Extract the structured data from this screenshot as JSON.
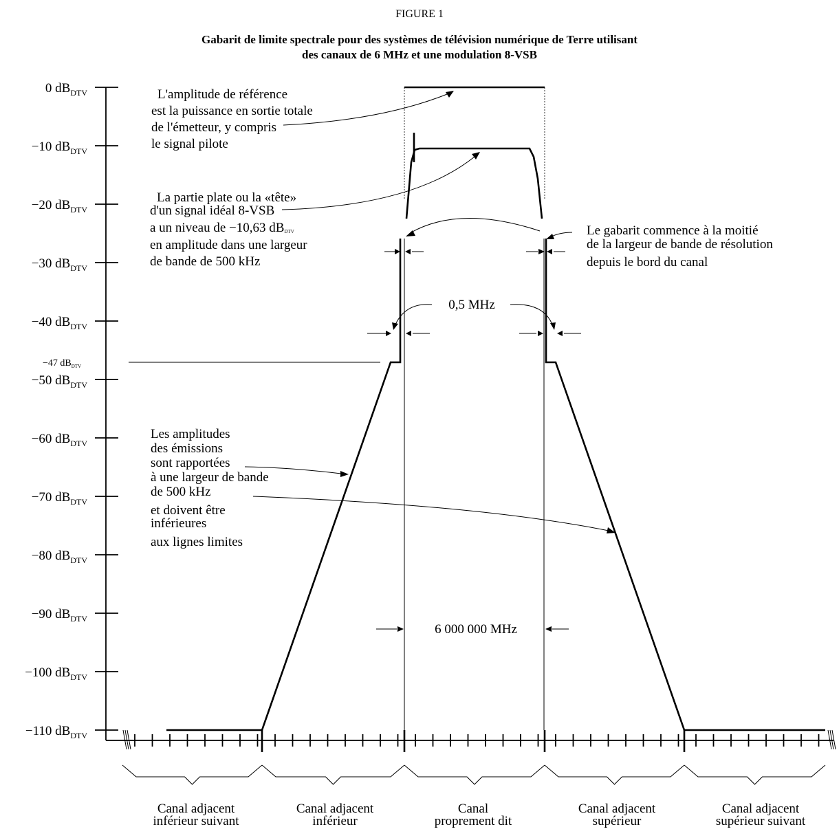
{
  "figure_label": "FIGURE 1",
  "title_line1": "Gabarit de limite spectrale pour des systèmes de télévision numérique de Terre utilisant",
  "title_line2": "des canaux de 6 MHz et une modulation 8-VSB",
  "y_axis": {
    "unit_subscript": "DTV",
    "ticks": [
      {
        "value": 0,
        "label": "0 dB"
      },
      {
        "value": -10,
        "label": "−10 dB"
      },
      {
        "value": -20,
        "label": "−20 dB"
      },
      {
        "value": -30,
        "label": "−30 dB"
      },
      {
        "value": -40,
        "label": "−40 dB"
      },
      {
        "value": -50,
        "label": "−50 dB"
      },
      {
        "value": -60,
        "label": "−60 dB"
      },
      {
        "value": -70,
        "label": "−70 dB"
      },
      {
        "value": -80,
        "label": "−80 dB"
      },
      {
        "value": -90,
        "label": "−90 dB"
      },
      {
        "value": -100,
        "label": "−100 dB"
      },
      {
        "value": -110,
        "label": "−110 dB"
      }
    ],
    "marker_47": {
      "value": -47,
      "label": "−47 dB",
      "subscript": "DTV"
    }
  },
  "annotations": {
    "reference": [
      "L'amplitude de référence",
      "est la puissance en sortie totale",
      "de l'émetteur, y compris",
      "le signal pilote"
    ],
    "flat": [
      "La partie plate ou la «tête»",
      "d'un signal idéal 8-VSB",
      "a un niveau de −10,63 dB",
      "en amplitude dans une largeur",
      "de bande de 500 kHz"
    ],
    "flat_subscript": "DTV",
    "mask_start": [
      "Le gabarit commence à la moitié",
      "de la largeur de bande de résolution",
      "depuis le bord du canal"
    ],
    "emissions": [
      "Les amplitudes",
      "des émissions",
      "sont rapportées",
      "à une largeur de bande",
      "de 500 kHz",
      " et doivent être",
      "inférieures",
      "aux lignes limites"
    ],
    "half_mhz": "0,5 MHz",
    "channel_width": "6 000 000 MHz"
  },
  "channels": [
    [
      "Canal adjacent",
      "inférieur suivant"
    ],
    [
      "Canal adjacent",
      "inférieur"
    ],
    [
      "Canal",
      "proprement dit"
    ],
    [
      "Canal adjacent",
      "supérieur"
    ],
    [
      "Canal adjacent",
      "supérieur suivant"
    ]
  ]
}
